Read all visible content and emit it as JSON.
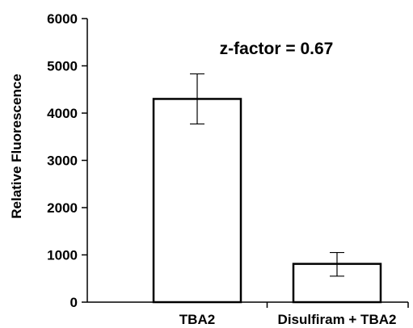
{
  "chart_data": {
    "type": "bar",
    "categories": [
      "TBA2",
      "Disulfiram + TBA2"
    ],
    "values": [
      4300,
      810
    ],
    "error_low": [
      3770,
      550
    ],
    "error_high": [
      4830,
      1050
    ],
    "ylabel": "Relative Fluorescence",
    "xlabel": "",
    "ylim": [
      0,
      6000
    ],
    "yticks": [
      "0",
      "1000",
      "2000",
      "3000",
      "4000",
      "5000",
      "6000"
    ],
    "annotation": "z-factor = 0.67",
    "grid": false,
    "bar_fill": "#ffffff",
    "bar_stroke": "#000000"
  }
}
